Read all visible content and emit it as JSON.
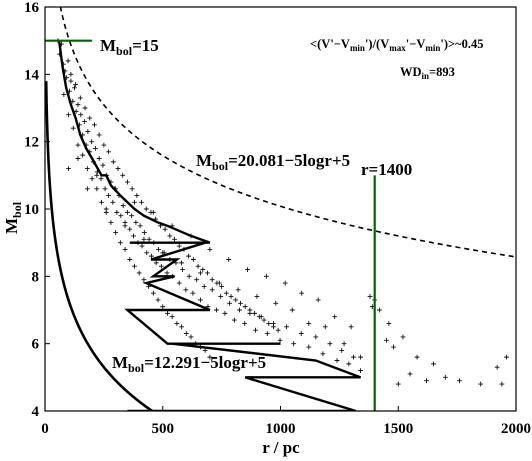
{
  "chart_data": {
    "type": "scatter",
    "xlabel": "r / pc",
    "ylabel": "M",
    "ylabel_sub": "bol",
    "xlim": [
      0,
      2000
    ],
    "ylim": [
      4,
      16
    ],
    "x_ticks": [
      0,
      500,
      1000,
      1500,
      2000
    ],
    "y_ticks": [
      4,
      6,
      8,
      10,
      12,
      14,
      16
    ],
    "annotations": {
      "top_right_line1": "<(V'−V",
      "top_right_min1": "min",
      "top_right_mid": "')/(V",
      "top_right_max": "max",
      "top_right_mid2": "'−V",
      "top_right_min2": "min",
      "top_right_end": "')>~0.45",
      "wd_main": "WD",
      "wd_sub": "in",
      "wd_value": "=893",
      "mbol_limit_main": "M",
      "mbol_limit_sub": "bol",
      "mbol_limit_value": "=15",
      "upper_curve_main": "M",
      "upper_curve_sub": "bol",
      "upper_curve_value": "=20.081−5logr+5",
      "lower_curve_main": "M",
      "lower_curve_sub": "bol",
      "lower_curve_value": "=12.291−5logr+5",
      "r_limit_label": "r=1400"
    },
    "dashed_curve": {
      "formula": "M = 20.081 - 5 log10(r) + 5",
      "from_r": 40,
      "to_r": 2000
    },
    "solid_curve": {
      "formula": "M = 12.291 - 5 log10(r) + 5",
      "from_r": 5,
      "to_r": 460
    },
    "hline_mbol15": {
      "y": 15,
      "x_range": [
        0,
        200
      ],
      "color": "#006400"
    },
    "vline_r1400": {
      "x": 1400,
      "y_range": [
        4,
        11
      ],
      "color": "#006400"
    },
    "zigzag_line": {
      "x": [
        60,
        75,
        90,
        110,
        130,
        150,
        175,
        200,
        240,
        260,
        280,
        320,
        350,
        380,
        420,
        480,
        520,
        620,
        700,
        360,
        440,
        600,
        680,
        450,
        560,
        460,
        550,
        430,
        700,
        350,
        520,
        1000,
        540,
        1150,
        1340,
        850,
        1320,
        350
      ],
      "y": [
        15,
        14.2,
        13.6,
        13.1,
        12.7,
        12.2,
        11.8,
        11.5,
        11.0,
        11.0,
        10.7,
        10.4,
        10.2,
        10.0,
        9.8,
        9.6,
        9.5,
        9.2,
        9.0,
        9.0,
        9.0,
        9.0,
        9.0,
        8.5,
        8.5,
        8.0,
        8.0,
        7.8,
        7.0,
        7.0,
        6.0,
        6.0,
        6.0,
        5.5,
        5.0,
        5.0,
        4.0,
        4.0
      ],
      "color": "#000000"
    },
    "scatter_points": [
      [
        55,
        15.0
      ],
      [
        62,
        14.6
      ],
      [
        70,
        14.9
      ],
      [
        78,
        14.3
      ],
      [
        85,
        14.1
      ],
      [
        92,
        13.9
      ],
      [
        98,
        14.4
      ],
      [
        104,
        13.5
      ],
      [
        110,
        13.8
      ],
      [
        118,
        13.2
      ],
      [
        125,
        13.6
      ],
      [
        132,
        12.9
      ],
      [
        140,
        13.1
      ],
      [
        146,
        12.5
      ],
      [
        152,
        12.8
      ],
      [
        160,
        12.2
      ],
      [
        168,
        12.6
      ],
      [
        175,
        11.9
      ],
      [
        182,
        12.3
      ],
      [
        190,
        11.7
      ],
      [
        198,
        12.0
      ],
      [
        205,
        11.4
      ],
      [
        214,
        11.8
      ],
      [
        222,
        11.1
      ],
      [
        230,
        11.5
      ],
      [
        238,
        10.9
      ],
      [
        246,
        11.3
      ],
      [
        255,
        10.6
      ],
      [
        262,
        11.0
      ],
      [
        270,
        10.4
      ],
      [
        280,
        10.8
      ],
      [
        288,
        10.2
      ],
      [
        296,
        10.6
      ],
      [
        305,
        9.9
      ],
      [
        314,
        10.4
      ],
      [
        322,
        9.8
      ],
      [
        332,
        10.1
      ],
      [
        340,
        9.6
      ],
      [
        350,
        9.9
      ],
      [
        360,
        9.4
      ],
      [
        368,
        9.8
      ],
      [
        376,
        9.2
      ],
      [
        386,
        9.6
      ],
      [
        395,
        9.0
      ],
      [
        404,
        9.5
      ],
      [
        412,
        8.9
      ],
      [
        422,
        9.3
      ],
      [
        432,
        8.7
      ],
      [
        442,
        9.1
      ],
      [
        452,
        8.6
      ],
      [
        462,
        9.0
      ],
      [
        472,
        8.4
      ],
      [
        482,
        8.8
      ],
      [
        494,
        8.3
      ],
      [
        506,
        8.7
      ],
      [
        518,
        8.1
      ],
      [
        530,
        8.5
      ],
      [
        542,
        8.0
      ],
      [
        556,
        8.4
      ],
      [
        570,
        7.8
      ],
      [
        584,
        8.2
      ],
      [
        598,
        7.6
      ],
      [
        612,
        8.0
      ],
      [
        628,
        7.5
      ],
      [
        644,
        7.9
      ],
      [
        660,
        7.3
      ],
      [
        676,
        7.7
      ],
      [
        692,
        7.1
      ],
      [
        710,
        7.6
      ],
      [
        728,
        7.0
      ],
      [
        746,
        7.4
      ],
      [
        764,
        6.9
      ],
      [
        784,
        7.2
      ],
      [
        804,
        6.7
      ],
      [
        826,
        7.0
      ],
      [
        848,
        6.6
      ],
      [
        870,
        6.9
      ],
      [
        894,
        6.4
      ],
      [
        918,
        6.8
      ],
      [
        944,
        6.3
      ],
      [
        970,
        6.6
      ],
      [
        998,
        6.1
      ],
      [
        1026,
        6.5
      ],
      [
        1056,
        6.0
      ],
      [
        1088,
        6.3
      ],
      [
        1120,
        5.9
      ],
      [
        1150,
        6.2
      ],
      [
        1180,
        5.7
      ],
      [
        1210,
        6.0
      ],
      [
        1240,
        5.5
      ],
      [
        1260,
        5.8
      ],
      [
        1290,
        5.4
      ],
      [
        1310,
        5.6
      ],
      [
        1340,
        5.2
      ],
      [
        80,
        13.4
      ],
      [
        100,
        12.8
      ],
      [
        120,
        12.4
      ],
      [
        140,
        11.9
      ],
      [
        160,
        11.6
      ],
      [
        180,
        11.2
      ],
      [
        200,
        10.9
      ],
      [
        220,
        10.6
      ],
      [
        240,
        10.2
      ],
      [
        260,
        9.9
      ],
      [
        280,
        9.6
      ],
      [
        300,
        9.3
      ],
      [
        320,
        9.0
      ],
      [
        340,
        8.8
      ],
      [
        360,
        8.5
      ],
      [
        380,
        8.3
      ],
      [
        400,
        8.1
      ],
      [
        420,
        7.9
      ],
      [
        440,
        7.7
      ],
      [
        460,
        7.5
      ],
      [
        480,
        7.3
      ],
      [
        500,
        7.1
      ],
      [
        520,
        6.9
      ],
      [
        540,
        6.8
      ],
      [
        560,
        6.6
      ],
      [
        580,
        6.5
      ],
      [
        600,
        6.3
      ],
      [
        620,
        6.2
      ],
      [
        640,
        6.0
      ],
      [
        660,
        5.9
      ],
      [
        680,
        5.8
      ],
      [
        700,
        5.6
      ],
      [
        110,
        14.0
      ],
      [
        130,
        13.7
      ],
      [
        150,
        13.3
      ],
      [
        170,
        13.0
      ],
      [
        190,
        12.7
      ],
      [
        210,
        12.5
      ],
      [
        230,
        12.2
      ],
      [
        250,
        11.9
      ],
      [
        270,
        11.7
      ],
      [
        290,
        11.4
      ],
      [
        310,
        11.2
      ],
      [
        330,
        11.0
      ],
      [
        350,
        10.8
      ],
      [
        370,
        10.6
      ],
      [
        390,
        10.4
      ],
      [
        410,
        10.2
      ],
      [
        430,
        10.0
      ],
      [
        450,
        9.9
      ],
      [
        470,
        9.7
      ],
      [
        490,
        9.5
      ],
      [
        510,
        9.4
      ],
      [
        530,
        9.2
      ],
      [
        550,
        9.1
      ],
      [
        570,
        8.9
      ],
      [
        590,
        8.8
      ],
      [
        610,
        8.6
      ],
      [
        630,
        8.5
      ],
      [
        650,
        8.3
      ],
      [
        670,
        8.2
      ],
      [
        690,
        8.1
      ],
      [
        710,
        7.9
      ],
      [
        730,
        7.8
      ],
      [
        750,
        7.7
      ],
      [
        770,
        7.5
      ],
      [
        790,
        7.4
      ],
      [
        810,
        7.3
      ],
      [
        830,
        7.2
      ],
      [
        850,
        7.1
      ],
      [
        870,
        7.0
      ],
      [
        890,
        6.9
      ],
      [
        910,
        6.8
      ],
      [
        930,
        6.7
      ],
      [
        950,
        6.6
      ],
      [
        970,
        6.5
      ],
      [
        990,
        6.4
      ],
      [
        1380,
        7.4
      ],
      [
        1390,
        7.1
      ],
      [
        1400,
        7.3
      ],
      [
        1420,
        7.0
      ],
      [
        1460,
        6.6
      ],
      [
        1520,
        6.2
      ],
      [
        1480,
        5.9
      ],
      [
        1580,
        5.6
      ],
      [
        1650,
        5.4
      ],
      [
        1700,
        5.0
      ],
      [
        1760,
        4.9
      ],
      [
        1850,
        4.8
      ],
      [
        1920,
        5.3
      ],
      [
        1940,
        4.8
      ],
      [
        1960,
        5.6
      ],
      [
        1620,
        4.9
      ],
      [
        1550,
        5.1
      ],
      [
        1450,
        6.1
      ],
      [
        1500,
        4.8
      ],
      [
        1340,
        5.6
      ],
      [
        1300,
        6.5
      ],
      [
        1270,
        6.0
      ],
      [
        1230,
        6.8
      ],
      [
        1190,
        6.5
      ],
      [
        1160,
        7.3
      ],
      [
        1120,
        6.6
      ],
      [
        1090,
        7.5
      ],
      [
        1050,
        7.0
      ],
      [
        1020,
        7.8
      ],
      [
        980,
        7.2
      ],
      [
        940,
        8.0
      ],
      [
        900,
        7.4
      ],
      [
        860,
        8.2
      ],
      [
        820,
        7.6
      ],
      [
        780,
        8.5
      ],
      [
        740,
        7.8
      ],
      [
        700,
        8.8
      ],
      [
        660,
        8.1
      ],
      [
        620,
        9.2
      ],
      [
        580,
        8.4
      ],
      [
        540,
        9.5
      ],
      [
        500,
        8.7
      ],
      [
        460,
        9.9
      ],
      [
        420,
        9.1
      ],
      [
        380,
        10.2
      ],
      [
        340,
        9.5
      ],
      [
        300,
        10.6
      ],
      [
        260,
        10.0
      ],
      [
        220,
        11.0
      ],
      [
        180,
        10.6
      ],
      [
        140,
        11.5
      ],
      [
        100,
        11.2
      ]
    ]
  }
}
